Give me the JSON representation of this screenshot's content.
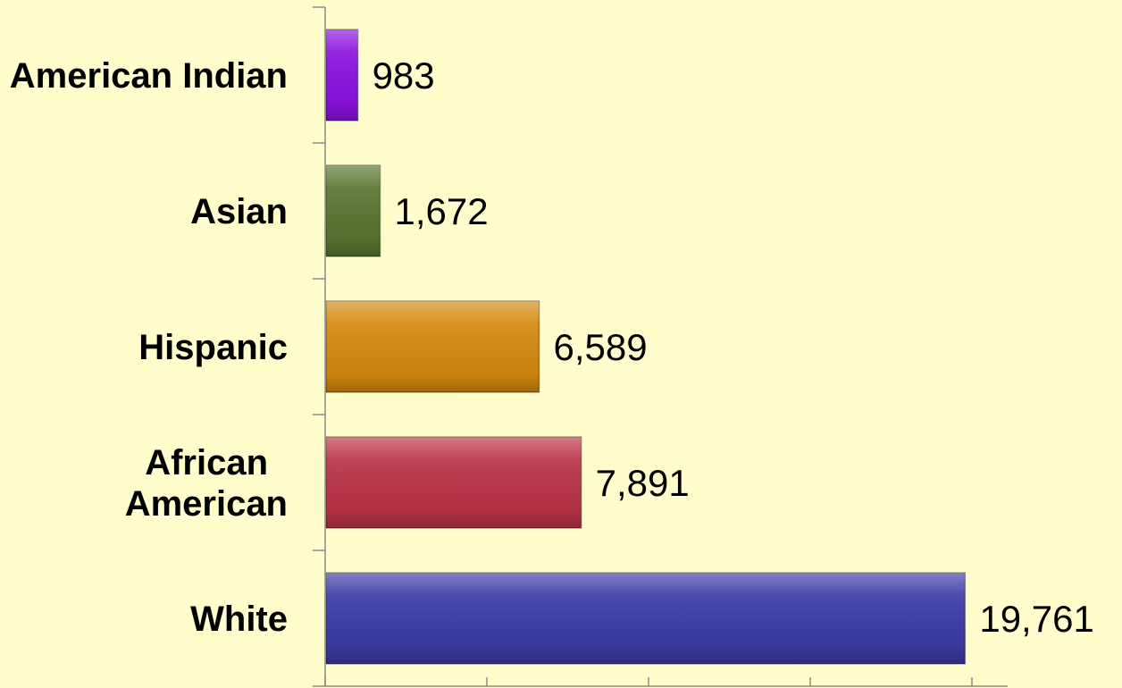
{
  "chart_data": {
    "type": "bar",
    "orientation": "horizontal",
    "categories": [
      "American Indian",
      "Asian",
      "Hispanic",
      "African American",
      "White"
    ],
    "category_label_lines": [
      [
        "American Indian"
      ],
      [
        "Asian"
      ],
      [
        "Hispanic"
      ],
      [
        "African",
        "American"
      ],
      [
        "White"
      ]
    ],
    "values": [
      983,
      1672,
      6589,
      7891,
      19761
    ],
    "value_labels": [
      "983",
      "1,672",
      "6,589",
      "7,891",
      "19,761"
    ],
    "colors": [
      "#8B12E0",
      "#5B7530",
      "#D4890E",
      "#BA3346",
      "#3C3CA6"
    ],
    "xlim": [
      0,
      20000
    ],
    "x_tick_step": 5000,
    "grid": false,
    "legend": "none",
    "title": "",
    "xlabel": "",
    "ylabel": ""
  }
}
